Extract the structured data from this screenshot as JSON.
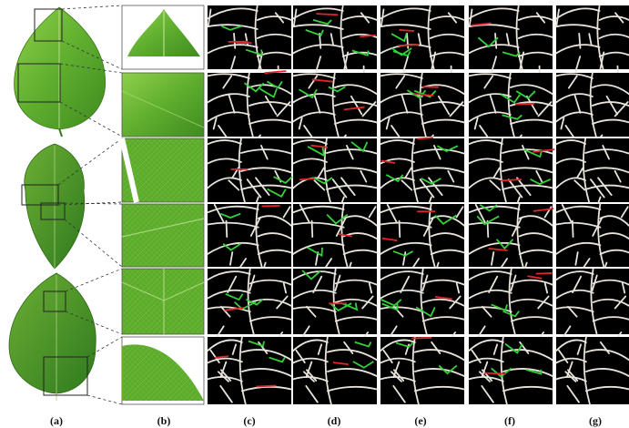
{
  "figure": {
    "panel_labels": [
      "(a)",
      "(b)",
      "(c)",
      "(d)",
      "(e)",
      "(f)",
      "(g)"
    ]
  },
  "colors": {
    "leaf_light": "#7cc23c",
    "leaf_mid": "#5aa82a",
    "leaf_dark": "#3e8a22",
    "vein": "#e8e4dc",
    "vein_green": "#35d13a",
    "vein_red": "#e0252b",
    "background_map": "#000000",
    "guide": "#333333"
  },
  "rows": 6,
  "columns": [
    "(c)",
    "(d)",
    "(e)",
    "(f)",
    "(g)"
  ]
}
